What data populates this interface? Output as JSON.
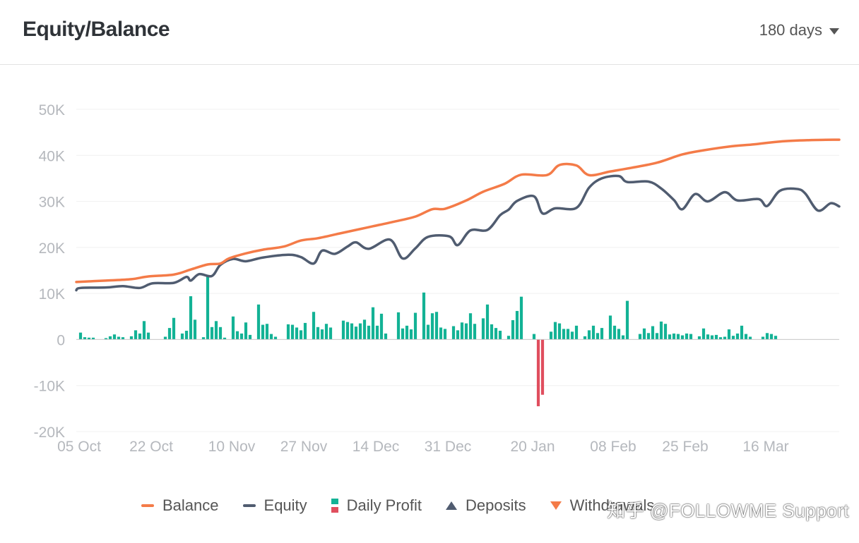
{
  "header": {
    "title": "Equity/Balance",
    "range_selected": "180 days"
  },
  "legend": {
    "balance": "Balance",
    "equity": "Equity",
    "daily_profit": "Daily Profit",
    "deposits": "Deposits",
    "withdrawals": "Withdrawals"
  },
  "watermark": "知乎 @FOLLOWME Support",
  "colors": {
    "balance": "#f47b48",
    "equity": "#505c70",
    "profit_positive": "#13b295",
    "profit_negative": "#e04e5e",
    "grid": "#f0f0f0",
    "tick": "#b5b8bd"
  },
  "chart_data": {
    "type": "line",
    "title": "Equity/Balance",
    "ylim": [
      -20000,
      50000
    ],
    "y_ticks": [
      50000,
      40000,
      30000,
      20000,
      10000,
      0,
      -10000,
      -20000
    ],
    "y_tick_labels": [
      "50K",
      "40K",
      "30K",
      "20K",
      "10K",
      "0",
      "-10K",
      "-20K"
    ],
    "x_range": [
      "2022-10-05",
      "2023-04-03"
    ],
    "x_tick_labels": [
      "05 Oct",
      "22 Oct",
      "10 Nov",
      "27 Nov",
      "14 Dec",
      "31 Dec",
      "20 Jan",
      "08 Feb",
      "25 Feb",
      "16 Mar"
    ],
    "x_tick_dates": [
      "2022-10-05",
      "2022-10-22",
      "2022-11-10",
      "2022-11-27",
      "2022-12-14",
      "2022-12-31",
      "2023-01-20",
      "2023-02-08",
      "2023-02-25",
      "2023-03-16"
    ],
    "grid": true,
    "legend_position": "bottom",
    "series": [
      {
        "name": "Balance",
        "type": "line",
        "points": [
          [
            "2022-10-05",
            12500
          ],
          [
            "2022-10-12",
            12800
          ],
          [
            "2022-10-18",
            13100
          ],
          [
            "2022-10-22",
            13700
          ],
          [
            "2022-10-28",
            14100
          ],
          [
            "2022-11-01",
            15200
          ],
          [
            "2022-11-05",
            16300
          ],
          [
            "2022-11-08",
            16500
          ],
          [
            "2022-11-10",
            17600
          ],
          [
            "2022-11-14",
            18700
          ],
          [
            "2022-11-18",
            19500
          ],
          [
            "2022-11-23",
            20200
          ],
          [
            "2022-11-27",
            21500
          ],
          [
            "2022-12-01",
            22000
          ],
          [
            "2022-12-06",
            23000
          ],
          [
            "2022-12-11",
            24000
          ],
          [
            "2022-12-14",
            24600
          ],
          [
            "2022-12-19",
            25600
          ],
          [
            "2022-12-24",
            26700
          ],
          [
            "2022-12-28",
            28300
          ],
          [
            "2022-12-31",
            28400
          ],
          [
            "2023-01-05",
            30200
          ],
          [
            "2023-01-09",
            32100
          ],
          [
            "2023-01-14",
            33800
          ],
          [
            "2023-01-18",
            35800
          ],
          [
            "2023-01-24",
            35700
          ],
          [
            "2023-01-27",
            37900
          ],
          [
            "2023-01-31",
            37800
          ],
          [
            "2023-02-03",
            35700
          ],
          [
            "2023-02-08",
            36500
          ],
          [
            "2023-02-13",
            37300
          ],
          [
            "2023-02-19",
            38400
          ],
          [
            "2023-02-25",
            40200
          ],
          [
            "2023-03-02",
            41100
          ],
          [
            "2023-03-08",
            41900
          ],
          [
            "2023-03-14",
            42400
          ],
          [
            "2023-03-20",
            43000
          ],
          [
            "2023-03-27",
            43300
          ],
          [
            "2023-04-03",
            43400
          ]
        ]
      },
      {
        "name": "Equity",
        "type": "line",
        "points": [
          [
            "2022-10-05",
            10700
          ],
          [
            "2022-10-06",
            11200
          ],
          [
            "2022-10-12",
            11300
          ],
          [
            "2022-10-16",
            11600
          ],
          [
            "2022-10-20",
            11200
          ],
          [
            "2022-10-23",
            12200
          ],
          [
            "2022-10-28",
            12300
          ],
          [
            "2022-10-31",
            13600
          ],
          [
            "2022-11-01",
            12800
          ],
          [
            "2022-11-03",
            14200
          ],
          [
            "2022-11-06",
            13800
          ],
          [
            "2022-11-08",
            16200
          ],
          [
            "2022-11-11",
            17500
          ],
          [
            "2022-11-14",
            17000
          ],
          [
            "2022-11-18",
            17800
          ],
          [
            "2022-11-24",
            18400
          ],
          [
            "2022-11-27",
            17900
          ],
          [
            "2022-11-30",
            16500
          ],
          [
            "2022-12-02",
            19300
          ],
          [
            "2022-12-05",
            18600
          ],
          [
            "2022-12-08",
            20200
          ],
          [
            "2022-12-10",
            21100
          ],
          [
            "2022-12-13",
            19700
          ],
          [
            "2022-12-18",
            21700
          ],
          [
            "2022-12-21",
            17600
          ],
          [
            "2022-12-24",
            19800
          ],
          [
            "2022-12-27",
            22300
          ],
          [
            "2023-01-01",
            22400
          ],
          [
            "2023-01-03",
            20500
          ],
          [
            "2023-01-06",
            23700
          ],
          [
            "2023-01-10",
            23800
          ],
          [
            "2023-01-13",
            27000
          ],
          [
            "2023-01-15",
            28200
          ],
          [
            "2023-01-17",
            30100
          ],
          [
            "2023-01-21",
            31100
          ],
          [
            "2023-01-23",
            27400
          ],
          [
            "2023-01-26",
            28500
          ],
          [
            "2023-01-31",
            28600
          ],
          [
            "2023-02-03",
            33000
          ],
          [
            "2023-02-06",
            35000
          ],
          [
            "2023-02-10",
            35500
          ],
          [
            "2023-02-12",
            34200
          ],
          [
            "2023-02-17",
            34300
          ],
          [
            "2023-02-20",
            32800
          ],
          [
            "2023-02-23",
            30300
          ],
          [
            "2023-02-25",
            28300
          ],
          [
            "2023-02-28",
            31600
          ],
          [
            "2023-03-03",
            30000
          ],
          [
            "2023-03-07",
            32000
          ],
          [
            "2023-03-10",
            30200
          ],
          [
            "2023-03-15",
            30500
          ],
          [
            "2023-03-17",
            29000
          ],
          [
            "2023-03-20",
            32300
          ],
          [
            "2023-03-24",
            32700
          ],
          [
            "2023-03-26",
            31700
          ],
          [
            "2023-03-29",
            28000
          ],
          [
            "2023-04-01",
            29600
          ],
          [
            "2023-04-03",
            28900
          ]
        ]
      },
      {
        "name": "Daily Profit",
        "type": "bar",
        "points": [
          [
            "2022-10-06",
            1500
          ],
          [
            "2022-10-07",
            500
          ],
          [
            "2022-10-08",
            400
          ],
          [
            "2022-10-09",
            400
          ],
          [
            "2022-10-12",
            300
          ],
          [
            "2022-10-13",
            700
          ],
          [
            "2022-10-14",
            1100
          ],
          [
            "2022-10-15",
            600
          ],
          [
            "2022-10-16",
            500
          ],
          [
            "2022-10-18",
            700
          ],
          [
            "2022-10-19",
            2000
          ],
          [
            "2022-10-20",
            1300
          ],
          [
            "2022-10-21",
            4000
          ],
          [
            "2022-10-22",
            1500
          ],
          [
            "2022-10-26",
            600
          ],
          [
            "2022-10-27",
            2500
          ],
          [
            "2022-10-28",
            4700
          ],
          [
            "2022-10-30",
            1300
          ],
          [
            "2022-10-31",
            1900
          ],
          [
            "2022-11-01",
            9400
          ],
          [
            "2022-11-02",
            4300
          ],
          [
            "2022-11-04",
            500
          ],
          [
            "2022-11-05",
            14000
          ],
          [
            "2022-11-06",
            2700
          ],
          [
            "2022-11-07",
            4000
          ],
          [
            "2022-11-08",
            2700
          ],
          [
            "2022-11-09",
            400
          ],
          [
            "2022-11-11",
            5000
          ],
          [
            "2022-11-12",
            1800
          ],
          [
            "2022-11-13",
            1300
          ],
          [
            "2022-11-14",
            3700
          ],
          [
            "2022-11-15",
            1000
          ],
          [
            "2022-11-17",
            7600
          ],
          [
            "2022-11-18",
            3200
          ],
          [
            "2022-11-19",
            3400
          ],
          [
            "2022-11-20",
            1200
          ],
          [
            "2022-11-21",
            600
          ],
          [
            "2022-11-24",
            3300
          ],
          [
            "2022-11-25",
            3200
          ],
          [
            "2022-11-26",
            2600
          ],
          [
            "2022-11-27",
            2000
          ],
          [
            "2022-11-28",
            3600
          ],
          [
            "2022-11-30",
            6000
          ],
          [
            "2022-12-01",
            2700
          ],
          [
            "2022-12-02",
            2200
          ],
          [
            "2022-12-03",
            3400
          ],
          [
            "2022-12-04",
            2600
          ],
          [
            "2022-12-07",
            4100
          ],
          [
            "2022-12-08",
            3800
          ],
          [
            "2022-12-09",
            3500
          ],
          [
            "2022-12-10",
            2800
          ],
          [
            "2022-12-11",
            3500
          ],
          [
            "2022-12-12",
            4300
          ],
          [
            "2022-12-13",
            3000
          ],
          [
            "2022-12-14",
            7000
          ],
          [
            "2022-12-15",
            3000
          ],
          [
            "2022-12-16",
            5600
          ],
          [
            "2022-12-17",
            1300
          ],
          [
            "2022-12-20",
            5900
          ],
          [
            "2022-12-21",
            2400
          ],
          [
            "2022-12-22",
            3000
          ],
          [
            "2022-12-23",
            2200
          ],
          [
            "2022-12-24",
            5800
          ],
          [
            "2022-12-26",
            10200
          ],
          [
            "2022-12-27",
            3200
          ],
          [
            "2022-12-28",
            5700
          ],
          [
            "2022-12-29",
            6000
          ],
          [
            "2022-12-30",
            2600
          ],
          [
            "2022-12-31",
            2300
          ],
          [
            "2023-01-02",
            2900
          ],
          [
            "2023-01-03",
            2000
          ],
          [
            "2023-01-04",
            3700
          ],
          [
            "2023-01-05",
            3500
          ],
          [
            "2023-01-06",
            5700
          ],
          [
            "2023-01-07",
            3400
          ],
          [
            "2023-01-09",
            4600
          ],
          [
            "2023-01-10",
            7600
          ],
          [
            "2023-01-11",
            3300
          ],
          [
            "2023-01-12",
            2500
          ],
          [
            "2023-01-13",
            1900
          ],
          [
            "2023-01-15",
            800
          ],
          [
            "2023-01-16",
            4200
          ],
          [
            "2023-01-17",
            6200
          ],
          [
            "2023-01-18",
            9300
          ],
          [
            "2023-01-21",
            1200
          ],
          [
            "2023-01-22",
            -14500
          ],
          [
            "2023-01-23",
            -12000
          ],
          [
            "2023-01-25",
            1700
          ],
          [
            "2023-01-26",
            3800
          ],
          [
            "2023-01-27",
            3500
          ],
          [
            "2023-01-28",
            2300
          ],
          [
            "2023-01-29",
            2300
          ],
          [
            "2023-01-30",
            1700
          ],
          [
            "2023-01-31",
            3000
          ],
          [
            "2023-02-02",
            700
          ],
          [
            "2023-02-03",
            2000
          ],
          [
            "2023-02-04",
            3000
          ],
          [
            "2023-02-05",
            1400
          ],
          [
            "2023-02-06",
            2500
          ],
          [
            "2023-02-08",
            5200
          ],
          [
            "2023-02-09",
            3000
          ],
          [
            "2023-02-10",
            2300
          ],
          [
            "2023-02-11",
            900
          ],
          [
            "2023-02-12",
            8400
          ],
          [
            "2023-02-15",
            1200
          ],
          [
            "2023-02-16",
            2400
          ],
          [
            "2023-02-17",
            1400
          ],
          [
            "2023-02-18",
            2900
          ],
          [
            "2023-02-19",
            1400
          ],
          [
            "2023-02-20",
            3900
          ],
          [
            "2023-02-21",
            3400
          ],
          [
            "2023-02-22",
            1100
          ],
          [
            "2023-02-23",
            1300
          ],
          [
            "2023-02-24",
            1200
          ],
          [
            "2023-02-25",
            900
          ],
          [
            "2023-02-26",
            1300
          ],
          [
            "2023-02-27",
            1200
          ],
          [
            "2023-03-01",
            700
          ],
          [
            "2023-03-02",
            2400
          ],
          [
            "2023-03-03",
            1100
          ],
          [
            "2023-03-04",
            900
          ],
          [
            "2023-03-05",
            1000
          ],
          [
            "2023-03-06",
            500
          ],
          [
            "2023-03-07",
            600
          ],
          [
            "2023-03-08",
            2200
          ],
          [
            "2023-03-09",
            800
          ],
          [
            "2023-03-10",
            1300
          ],
          [
            "2023-03-11",
            3000
          ],
          [
            "2023-03-12",
            1200
          ],
          [
            "2023-03-13",
            600
          ],
          [
            "2023-03-16",
            600
          ],
          [
            "2023-03-17",
            1400
          ],
          [
            "2023-03-18",
            1200
          ],
          [
            "2023-03-19",
            800
          ]
        ]
      }
    ]
  }
}
